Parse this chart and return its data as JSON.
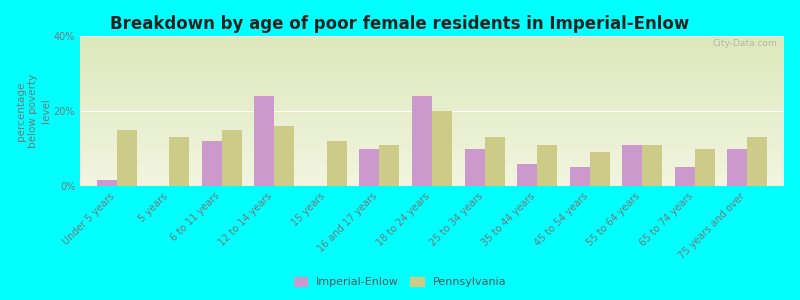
{
  "title": "Breakdown by age of poor female residents in Imperial-Enlow",
  "ylabel": "percentage\nbelow poverty\nlevel",
  "background_color": "#00ffff",
  "plot_bg_top": "#dde8bb",
  "plot_bg_bottom": "#f2f5e0",
  "categories": [
    "Under 5 years",
    "5 years",
    "6 to 11 years",
    "12 to 14 years",
    "15 years",
    "16 and 17 years",
    "18 to 24 years",
    "25 to 34 years",
    "35 to 44 years",
    "45 to 54 years",
    "55 to 64 years",
    "65 to 74 years",
    "75 years and over"
  ],
  "imperial_enlow": [
    1.5,
    0,
    12,
    24,
    0,
    10,
    24,
    10,
    6,
    5,
    11,
    5,
    10
  ],
  "pennsylvania": [
    15,
    13,
    15,
    16,
    12,
    11,
    20,
    13,
    11,
    9,
    11,
    10,
    13
  ],
  "imperial_color": "#cc99cc",
  "pennsylvania_color": "#cccc88",
  "ylim": [
    0,
    40
  ],
  "yticks": [
    0,
    20,
    40
  ],
  "ytick_labels": [
    "0%",
    "20%",
    "40%"
  ],
  "bar_width": 0.38,
  "title_fontsize": 12,
  "axis_label_fontsize": 7.5,
  "tick_fontsize": 7,
  "watermark": "City-Data.com",
  "legend_fontsize": 8
}
